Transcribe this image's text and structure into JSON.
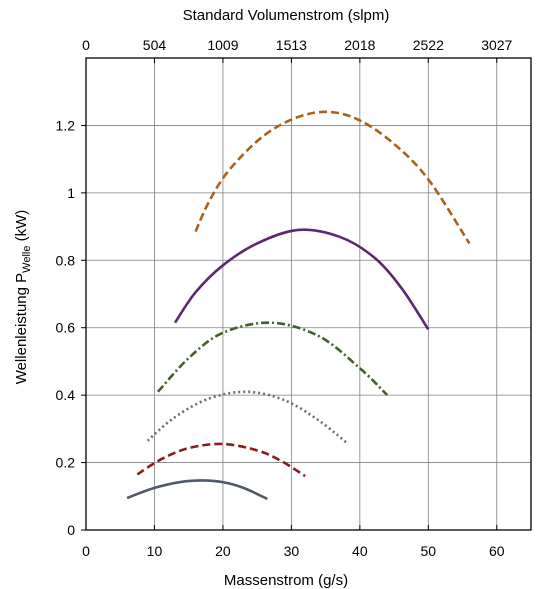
{
  "chart_data": {
    "type": "line",
    "title": "",
    "xlabel": "Massenstrom (g/s)",
    "ylabel": {
      "main": "Wellenleistung P",
      "sub": "Welle",
      "unit": " (kW)"
    },
    "x2label": "Standard Volumenstrom (slpm)",
    "xlim": [
      0,
      65
    ],
    "ylim": [
      0,
      1.4
    ],
    "xticks": [
      0,
      10,
      20,
      30,
      40,
      50,
      60
    ],
    "yticks": [
      0,
      0.2,
      0.4,
      0.6,
      0.8,
      1.0,
      1.2
    ],
    "ytick_labels": [
      "0",
      "0.2",
      "0.4",
      "0.6",
      "0.8",
      "1",
      "1.2"
    ],
    "x2ticks": [
      {
        "x": 0,
        "label": "0"
      },
      {
        "x": 10,
        "label": "504"
      },
      {
        "x": 20,
        "label": "1009"
      },
      {
        "x": 30,
        "label": "1513"
      },
      {
        "x": 40,
        "label": "2018"
      },
      {
        "x": 50,
        "label": "2522"
      },
      {
        "x": 60,
        "label": "3027"
      }
    ],
    "grid": true,
    "series": [
      {
        "color": "#4e5969",
        "style": "solid",
        "x": [
          6,
          10,
          14,
          17,
          20,
          23,
          26.5
        ],
        "y": [
          0.095,
          0.125,
          0.143,
          0.147,
          0.142,
          0.125,
          0.092
        ]
      },
      {
        "color": "#8b1c1c",
        "style": "dashed",
        "x": [
          7.5,
          11,
          15,
          20,
          25,
          28.5,
          32
        ],
        "y": [
          0.165,
          0.21,
          0.243,
          0.255,
          0.236,
          0.205,
          0.16
        ]
      },
      {
        "color": "#6e6e6e",
        "style": "dotted",
        "x": [
          9,
          13,
          18,
          23.5,
          29,
          34,
          38
        ],
        "y": [
          0.265,
          0.335,
          0.39,
          0.41,
          0.385,
          0.325,
          0.26
        ]
      },
      {
        "color": "#3f6226",
        "style": "dashdot",
        "x": [
          10.5,
          15,
          20,
          27,
          34,
          40,
          44
        ],
        "y": [
          0.41,
          0.51,
          0.585,
          0.615,
          0.575,
          0.48,
          0.4
        ]
      },
      {
        "color": "#5b2a6e",
        "style": "solid",
        "x": [
          13,
          16,
          20,
          25,
          31,
          37,
          42,
          46,
          50
        ],
        "y": [
          0.615,
          0.705,
          0.785,
          0.85,
          0.89,
          0.87,
          0.81,
          0.72,
          0.595
        ]
      },
      {
        "color": "#a8621b",
        "style": "dashed",
        "x": [
          16,
          18,
          21,
          26,
          31,
          35.5,
          40,
          45,
          50,
          56
        ],
        "y": [
          0.885,
          0.975,
          1.07,
          1.17,
          1.225,
          1.24,
          1.215,
          1.145,
          1.04,
          0.85
        ]
      }
    ]
  }
}
